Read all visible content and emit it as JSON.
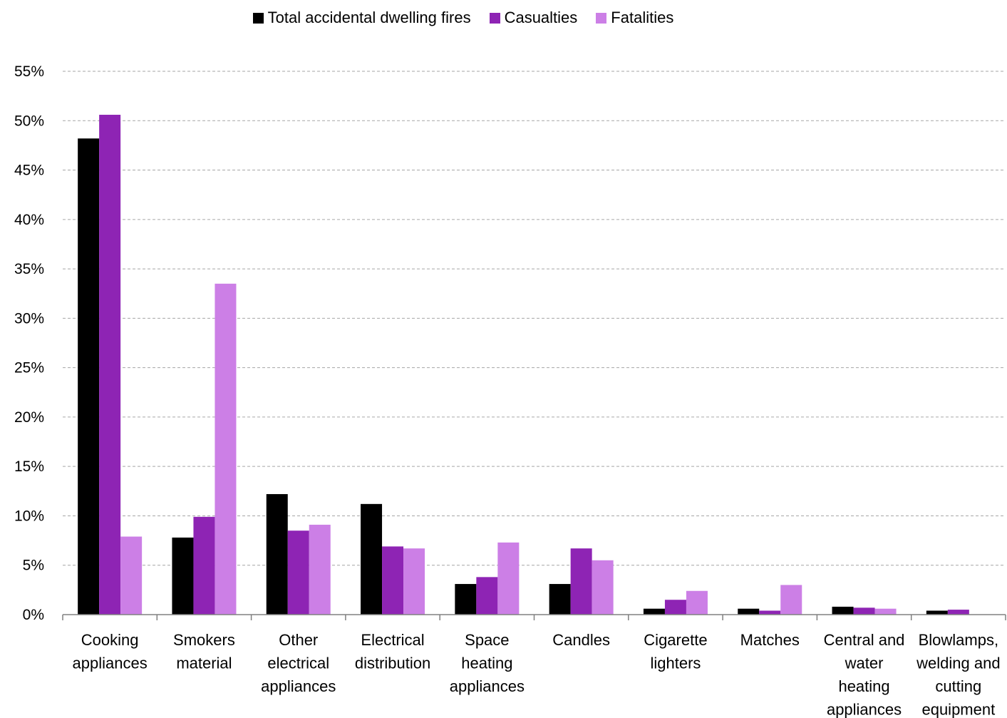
{
  "chart_data": {
    "type": "bar",
    "categories": [
      [
        "Cooking",
        "appliances"
      ],
      [
        "Smokers",
        "material"
      ],
      [
        "Other",
        "electrical",
        "appliances"
      ],
      [
        "Electrical",
        "distribution"
      ],
      [
        "Space",
        "heating",
        "appliances"
      ],
      [
        "Candles"
      ],
      [
        "Cigarette",
        "lighters"
      ],
      [
        "Matches"
      ],
      [
        "Central and",
        "water",
        "heating",
        "appliances"
      ],
      [
        "Blowlamps,",
        "welding and",
        "cutting",
        "equipment"
      ]
    ],
    "series": [
      {
        "name": "Total accidental dwelling fires",
        "color": "#000000",
        "values": [
          48.2,
          7.8,
          12.2,
          11.2,
          3.1,
          3.1,
          0.6,
          0.6,
          0.8,
          0.4
        ]
      },
      {
        "name": "Casualties",
        "color": "#8e24b4",
        "values": [
          50.6,
          9.9,
          8.5,
          6.9,
          3.8,
          6.7,
          1.5,
          0.4,
          0.7,
          0.5
        ]
      },
      {
        "name": "Fatalities",
        "color": "#cc7fe6",
        "values": [
          7.9,
          33.5,
          9.1,
          6.7,
          7.3,
          5.5,
          2.4,
          3.0,
          0.6,
          0.0
        ]
      }
    ],
    "yticks": [
      "0%",
      "5%",
      "10%",
      "15%",
      "20%",
      "25%",
      "30%",
      "35%",
      "40%",
      "45%",
      "50%",
      "55%"
    ],
    "ylim": [
      0,
      55
    ],
    "grid": true,
    "legend_position": "top-center"
  }
}
